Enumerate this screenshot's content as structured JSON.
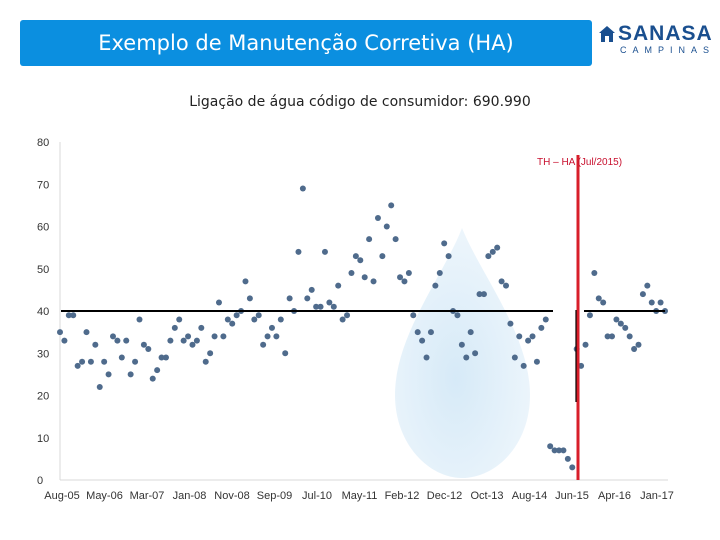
{
  "header": {
    "title": "Exemplo de Manutenção Corretiva (HA)",
    "logo_main": "SANASA",
    "logo_sub": "CAMPINAS",
    "accent": "#0b8fe0"
  },
  "subtitle": "Ligação de água código de consumidor: 690.990",
  "chart_data": {
    "type": "scatter",
    "title": "Ligação de água código de consumidor: 690.990",
    "xlabel": "",
    "ylabel": "",
    "ylim": [
      0,
      80
    ],
    "yticks": [
      0,
      10,
      20,
      30,
      40,
      50,
      60,
      70,
      80
    ],
    "xtick_labels": [
      "Aug-05",
      "May-06",
      "Mar-07",
      "Jan-08",
      "Nov-08",
      "Sep-09",
      "Jul-10",
      "May-11",
      "Feb-12",
      "Dec-12",
      "Oct-13",
      "Aug-14",
      "Jun-15",
      "Apr-16",
      "Jan-17"
    ],
    "grid": false,
    "point_color": "#4f6b8c",
    "series": [
      {
        "values": [
          35,
          33,
          39,
          39,
          27,
          28,
          35,
          28,
          32,
          22,
          28,
          25,
          34,
          33,
          29,
          33,
          25,
          28,
          38,
          32,
          31,
          24,
          26,
          29,
          29,
          33,
          36,
          38,
          33,
          34,
          32,
          33,
          36,
          28,
          30,
          34,
          42,
          34,
          38,
          37,
          39,
          40,
          47,
          43,
          38,
          39,
          32,
          34,
          36,
          34,
          38,
          30,
          43,
          40,
          54,
          69,
          43,
          45,
          41,
          41,
          54,
          42,
          41,
          46,
          38,
          39,
          49,
          53,
          52,
          48,
          57,
          47,
          62,
          53,
          60,
          65,
          57,
          48,
          47,
          49,
          39,
          35,
          33,
          29,
          35,
          46,
          49,
          56,
          53,
          40,
          39,
          32,
          29,
          35,
          30,
          44,
          44,
          53,
          54,
          55,
          47,
          46,
          37,
          29,
          34,
          27,
          33,
          34,
          28,
          36,
          38,
          8,
          7,
          7,
          7,
          5,
          3,
          31,
          27,
          32,
          39,
          49,
          43,
          42,
          34,
          34,
          38,
          37,
          36,
          34,
          31,
          32,
          44,
          46,
          42,
          40,
          42,
          40
        ]
      }
    ],
    "reference_level": 40,
    "annotation": "TH – HA (Jul/2015)",
    "annotation_color": "#d81e2a"
  }
}
